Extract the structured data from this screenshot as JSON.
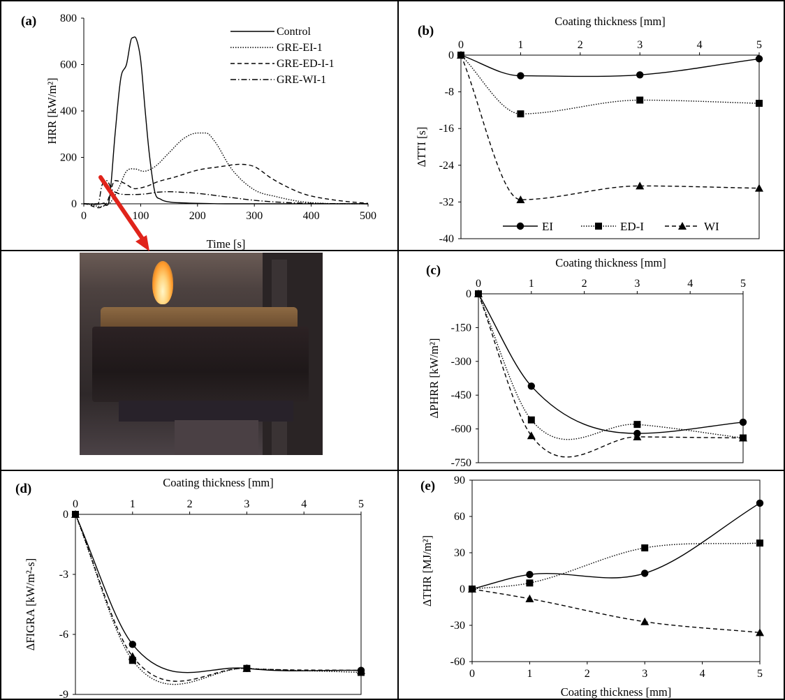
{
  "chart_data": [
    {
      "id": "a",
      "panel_label": "(a)",
      "type": "line",
      "xlabel": "Time [s]",
      "ylabel": "HRR [kW/m²]",
      "xlim": [
        0,
        500
      ],
      "ylim": [
        0,
        800
      ],
      "xticks": [
        0,
        100,
        200,
        300,
        400,
        500
      ],
      "yticks": [
        0,
        200,
        400,
        600,
        800
      ],
      "legend_position": "top-right",
      "series": [
        {
          "name": "Control",
          "dash": "solid",
          "x": [
            0,
            35,
            45,
            55,
            65,
            75,
            85,
            92,
            100,
            108,
            115,
            125,
            135,
            150,
            175,
            200,
            250,
            300,
            400,
            500
          ],
          "y": [
            0,
            3,
            20,
            300,
            540,
            600,
            715,
            712,
            620,
            400,
            220,
            50,
            20,
            8,
            4,
            2,
            0,
            0,
            0,
            0
          ]
        },
        {
          "name": "GRE-EI-1",
          "dash": "dotted",
          "x": [
            0,
            45,
            60,
            75,
            90,
            105,
            125,
            150,
            175,
            200,
            215,
            230,
            260,
            300,
            340,
            380,
            420,
            500
          ],
          "y": [
            0,
            2,
            60,
            140,
            150,
            140,
            160,
            220,
            280,
            305,
            305,
            270,
            150,
            60,
            30,
            10,
            2,
            0
          ]
        },
        {
          "name": "GRE-ED-I-1",
          "dash": "dashed",
          "x": [
            0,
            40,
            55,
            70,
            90,
            110,
            130,
            160,
            200,
            240,
            275,
            300,
            330,
            360,
            390,
            430,
            470,
            500
          ],
          "y": [
            0,
            3,
            100,
            90,
            65,
            75,
            95,
            115,
            145,
            160,
            170,
            160,
            110,
            70,
            40,
            20,
            8,
            2
          ]
        },
        {
          "name": "GRE-WI-1",
          "dash": "dashdot",
          "x": [
            0,
            25,
            32,
            40,
            50,
            60,
            75,
            90,
            110,
            130,
            150,
            170,
            200,
            250,
            300,
            350,
            400,
            500
          ],
          "y": [
            0,
            0,
            80,
            100,
            60,
            45,
            40,
            40,
            43,
            50,
            52,
            50,
            45,
            30,
            15,
            6,
            2,
            0
          ]
        }
      ]
    },
    {
      "id": "b",
      "panel_label": "(b)",
      "type": "line",
      "xlabel": "Coating thickness [mm]",
      "ylabel": "ΔTTI [s]",
      "xlim": [
        0,
        5
      ],
      "ylim": [
        -40,
        0
      ],
      "xticks": [
        0,
        1,
        2,
        3,
        4,
        5
      ],
      "yticks": [
        0,
        -8,
        -16,
        -24,
        -32,
        -40
      ],
      "x_axis_position": "top",
      "legend_position": "bottom",
      "x": [
        0,
        1,
        3,
        5
      ],
      "series": [
        {
          "name": "EI",
          "marker": "circle",
          "dash": "solid",
          "values": [
            0,
            -4.5,
            -4.3,
            -0.8
          ]
        },
        {
          "name": "ED-I",
          "marker": "square",
          "dash": "dotted",
          "values": [
            0,
            -12.8,
            -9.8,
            -10.5
          ]
        },
        {
          "name": "WI",
          "marker": "triangle",
          "dash": "dashed",
          "values": [
            0,
            -31.5,
            -28.5,
            -29
          ]
        }
      ]
    },
    {
      "id": "c",
      "panel_label": "(c)",
      "type": "line",
      "xlabel": "Coating thickness [mm]",
      "ylabel": "ΔPHRR [kW/m²]",
      "xlim": [
        0,
        5
      ],
      "ylim": [
        -750,
        0
      ],
      "xticks": [
        0,
        1,
        2,
        3,
        4,
        5
      ],
      "yticks": [
        0,
        -150,
        -300,
        -450,
        -600,
        -750
      ],
      "x_axis_position": "top",
      "x": [
        0,
        1,
        3,
        5
      ],
      "series": [
        {
          "marker": "circle",
          "dash": "solid",
          "values": [
            0,
            -410,
            -620,
            -570
          ]
        },
        {
          "marker": "square",
          "dash": "dotted",
          "values": [
            0,
            -560,
            -580,
            -640
          ]
        },
        {
          "marker": "triangle",
          "dash": "dashed",
          "values": [
            0,
            -630,
            -635,
            -640
          ]
        }
      ]
    },
    {
      "id": "d",
      "panel_label": "(d)",
      "type": "line",
      "xlabel": "Coating thickness [mm]",
      "ylabel": "ΔFIGRA [kW/m²-s]",
      "xlim": [
        0,
        5
      ],
      "ylim": [
        -9,
        0
      ],
      "xticks": [
        0,
        1,
        2,
        3,
        4,
        5
      ],
      "yticks": [
        0,
        -3,
        -6,
        -9
      ],
      "x_axis_position": "top",
      "x": [
        0,
        1,
        3,
        5
      ],
      "series": [
        {
          "marker": "circle",
          "dash": "solid",
          "values": [
            0,
            -6.5,
            -7.7,
            -7.8
          ]
        },
        {
          "marker": "square",
          "dash": "dotted",
          "values": [
            0,
            -7.3,
            -7.7,
            -7.9
          ]
        },
        {
          "marker": "triangle",
          "dash": "dashed",
          "values": [
            0,
            -7.1,
            -7.7,
            -7.8
          ]
        }
      ]
    },
    {
      "id": "e",
      "panel_label": "(e)",
      "type": "line",
      "xlabel": "Coating thickness [mm]",
      "ylabel": "ΔTHR [MJ/m²]",
      "xlim": [
        0,
        5
      ],
      "ylim": [
        -60,
        90
      ],
      "xticks": [
        0,
        1,
        2,
        3,
        4,
        5
      ],
      "yticks": [
        90,
        60,
        30,
        0,
        -30,
        -60
      ],
      "x_axis_position": "bottom",
      "x": [
        0,
        1,
        3,
        5
      ],
      "series": [
        {
          "marker": "circle",
          "dash": "solid",
          "values": [
            0,
            12,
            13,
            71
          ]
        },
        {
          "marker": "square",
          "dash": "dotted",
          "values": [
            0,
            5,
            34,
            38
          ]
        },
        {
          "marker": "triangle",
          "dash": "dashed",
          "values": [
            0,
            -8,
            -27,
            -36
          ]
        }
      ]
    }
  ]
}
